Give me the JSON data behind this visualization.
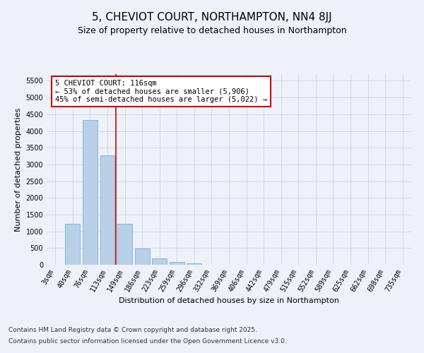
{
  "title": "5, CHEVIOT COURT, NORTHAMPTON, NN4 8JJ",
  "subtitle": "Size of property relative to detached houses in Northampton",
  "xlabel": "Distribution of detached houses by size in Northampton",
  "ylabel": "Number of detached properties",
  "categories": [
    "3sqm",
    "40sqm",
    "76sqm",
    "113sqm",
    "149sqm",
    "186sqm",
    "223sqm",
    "259sqm",
    "296sqm",
    "332sqm",
    "369sqm",
    "406sqm",
    "442sqm",
    "479sqm",
    "515sqm",
    "552sqm",
    "589sqm",
    "625sqm",
    "662sqm",
    "698sqm",
    "735sqm"
  ],
  "values": [
    0,
    1220,
    4330,
    3270,
    1230,
    490,
    200,
    90,
    50,
    0,
    0,
    0,
    0,
    0,
    0,
    0,
    0,
    0,
    0,
    0,
    0
  ],
  "bar_color": "#b8d0e8",
  "bar_edge_color": "#7aafd4",
  "vline_color": "#cc0000",
  "vline_x_index": 3.5,
  "annotation_text": "5 CHEVIOT COURT: 116sqm\n← 53% of detached houses are smaller (5,906)\n45% of semi-detached houses are larger (5,022) →",
  "annotation_box_color": "#ffffff",
  "annotation_box_edge": "#cc0000",
  "ylim": [
    0,
    5700
  ],
  "yticks": [
    0,
    500,
    1000,
    1500,
    2000,
    2500,
    3000,
    3500,
    4000,
    4500,
    5000,
    5500
  ],
  "footer_line1": "Contains HM Land Registry data © Crown copyright and database right 2025.",
  "footer_line2": "Contains public sector information licensed under the Open Government Licence v3.0.",
  "bg_color": "#eef2f8",
  "plot_bg_color": "#eef2f8",
  "title_fontsize": 11,
  "subtitle_fontsize": 9,
  "axis_label_fontsize": 8,
  "tick_fontsize": 7,
  "annotation_fontsize": 7.5,
  "footer_fontsize": 6.5
}
